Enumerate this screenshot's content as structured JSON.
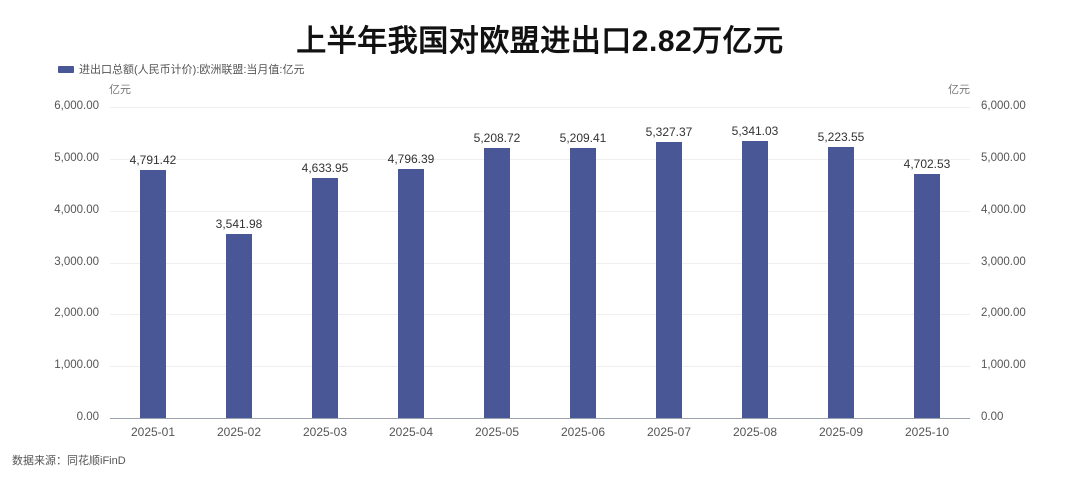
{
  "title": "上半年我国对欧盟进出口2.82万亿元",
  "legend": {
    "label": "进出口总额(人民币计价):欧洲联盟:当月值:亿元",
    "color": "#4a5797"
  },
  "axis": {
    "left_unit": "亿元",
    "right_unit": "亿元",
    "ticks": [
      "0.00",
      "1,000.00",
      "2,000.00",
      "3,000.00",
      "4,000.00",
      "5,000.00",
      "6,000.00"
    ]
  },
  "source": "数据来源：同花顺iFinD",
  "chart_data": {
    "type": "bar",
    "title": "上半年我国对欧盟进出口2.82万亿元",
    "xlabel": "",
    "ylabel": "亿元",
    "ylim": [
      0,
      6000
    ],
    "grid": true,
    "legend_position": "top-left",
    "categories": [
      "2025-01",
      "2025-02",
      "2025-03",
      "2025-04",
      "2025-05",
      "2025-06",
      "2025-07",
      "2025-08",
      "2025-09",
      "2025-10"
    ],
    "series": [
      {
        "name": "进出口总额(人民币计价):欧洲联盟:当月值:亿元",
        "color": "#4a5797",
        "values": [
          4791.42,
          3541.98,
          4633.95,
          4796.39,
          5208.72,
          5209.41,
          5327.37,
          5341.03,
          5223.55,
          4702.53
        ],
        "labels": [
          "4,791.42",
          "3,541.98",
          "4,633.95",
          "4,796.39",
          "5,208.72",
          "5,209.41",
          "5,327.37",
          "5,341.03",
          "5,223.55",
          "4,702.53"
        ]
      }
    ],
    "y_ticks": [
      0,
      1000,
      2000,
      3000,
      4000,
      5000,
      6000
    ],
    "dual_y_axis": true
  }
}
